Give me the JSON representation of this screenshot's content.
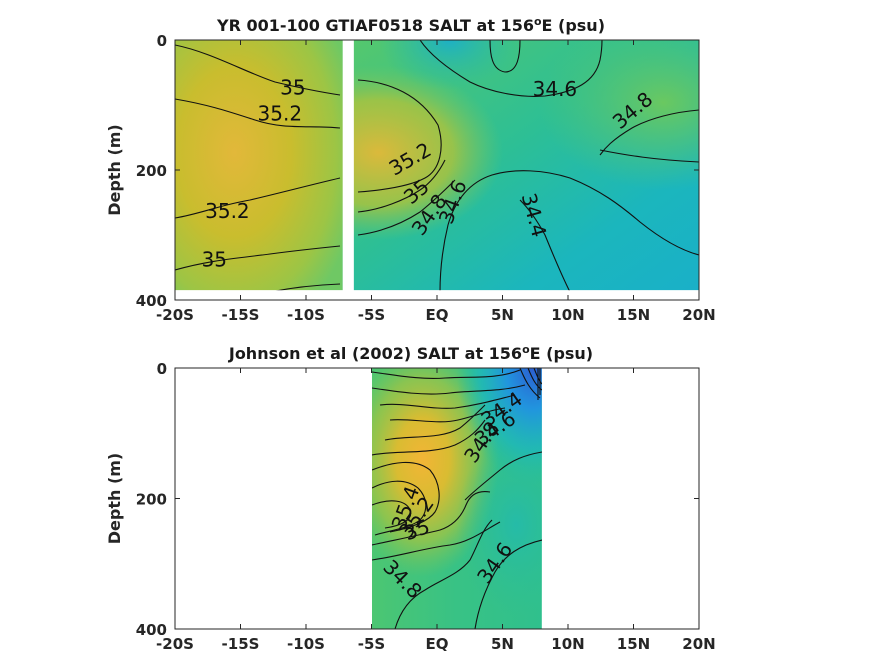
{
  "chart_data": [
    {
      "type": "heatmap",
      "title_main": "YR 001-100 GTIAF0518 SALT at 156",
      "title_sup": "o",
      "title_end": "E (psu)",
      "ylabel": "Depth (m)",
      "xlim": [
        -20,
        20
      ],
      "ylim": [
        0,
        400
      ],
      "y_reversed": true,
      "x_ticks": [
        -20,
        -15,
        -10,
        -5,
        0,
        5,
        10,
        15,
        20
      ],
      "x_tick_labels": [
        "-20S",
        "-15S",
        "-10S",
        "-5S",
        "EQ",
        "5N",
        "10N",
        "15N",
        "20N"
      ],
      "y_ticks": [
        0,
        200,
        400
      ],
      "y_tick_labels": [
        "0",
        "200",
        "400"
      ],
      "data_extent": {
        "x": [
          -20,
          20
        ],
        "y": [
          0,
          385
        ]
      },
      "gap_x": [
        -7.2,
        -6.5
      ],
      "contour_labels": [
        {
          "text": "35",
          "x": -11,
          "y": 75
        },
        {
          "text": "35.2",
          "x": -12,
          "y": 115
        },
        {
          "text": "35.2",
          "x": -16,
          "y": 265
        },
        {
          "text": "35",
          "x": -17,
          "y": 340
        },
        {
          "text": "34.6",
          "x": 9,
          "y": 78
        },
        {
          "text": "34.8",
          "x": 15,
          "y": 110
        },
        {
          "text": "35.2",
          "x": -2,
          "y": 185
        },
        {
          "text": "35",
          "x": -1.5,
          "y": 235
        },
        {
          "text": "34.8",
          "x": -0.5,
          "y": 270
        },
        {
          "text": "34.6",
          "x": 1.3,
          "y": 250
        },
        {
          "text": "34.4",
          "x": 7.3,
          "y": 270
        }
      ]
    },
    {
      "type": "heatmap",
      "title_main": "Johnson et al (2002) SALT at 156",
      "title_sup": "o",
      "title_end": "E (psu)",
      "ylabel": "Depth (m)",
      "xlim": [
        -20,
        20
      ],
      "ylim": [
        0,
        400
      ],
      "y_reversed": true,
      "x_ticks": [
        -20,
        -15,
        -10,
        -5,
        0,
        5,
        10,
        15,
        20
      ],
      "x_tick_labels": [
        "-20S",
        "-15S",
        "-10S",
        "-5S",
        "EQ",
        "5N",
        "10N",
        "15N",
        "20N"
      ],
      "y_ticks": [
        0,
        200,
        400
      ],
      "y_tick_labels": [
        "0",
        "200",
        "400"
      ],
      "data_extent": {
        "x": [
          -5,
          8
        ],
        "y": [
          0,
          400
        ]
      },
      "contour_labels": [
        {
          "text": "34.4",
          "x": 5,
          "y": 65
        },
        {
          "text": "34.6",
          "x": 4.5,
          "y": 95
        },
        {
          "text": "34.8",
          "x": 3.5,
          "y": 115
        },
        {
          "text": "35.4",
          "x": -2.3,
          "y": 215
        },
        {
          "text": "35.2",
          "x": -1.5,
          "y": 230
        },
        {
          "text": "35",
          "x": -1.5,
          "y": 250
        },
        {
          "text": "34.6",
          "x": 4.5,
          "y": 300
        },
        {
          "text": "34.8",
          "x": -2.7,
          "y": 325
        }
      ]
    }
  ],
  "colors": {
    "salt_high": "#e6b53a",
    "salt_mid_high": "#c8bf2c",
    "salt_mid": "#8cc654",
    "salt_mid_low": "#3fc27e",
    "salt_low": "#1bb3c3",
    "salt_lowest": "#2f6fd6"
  }
}
